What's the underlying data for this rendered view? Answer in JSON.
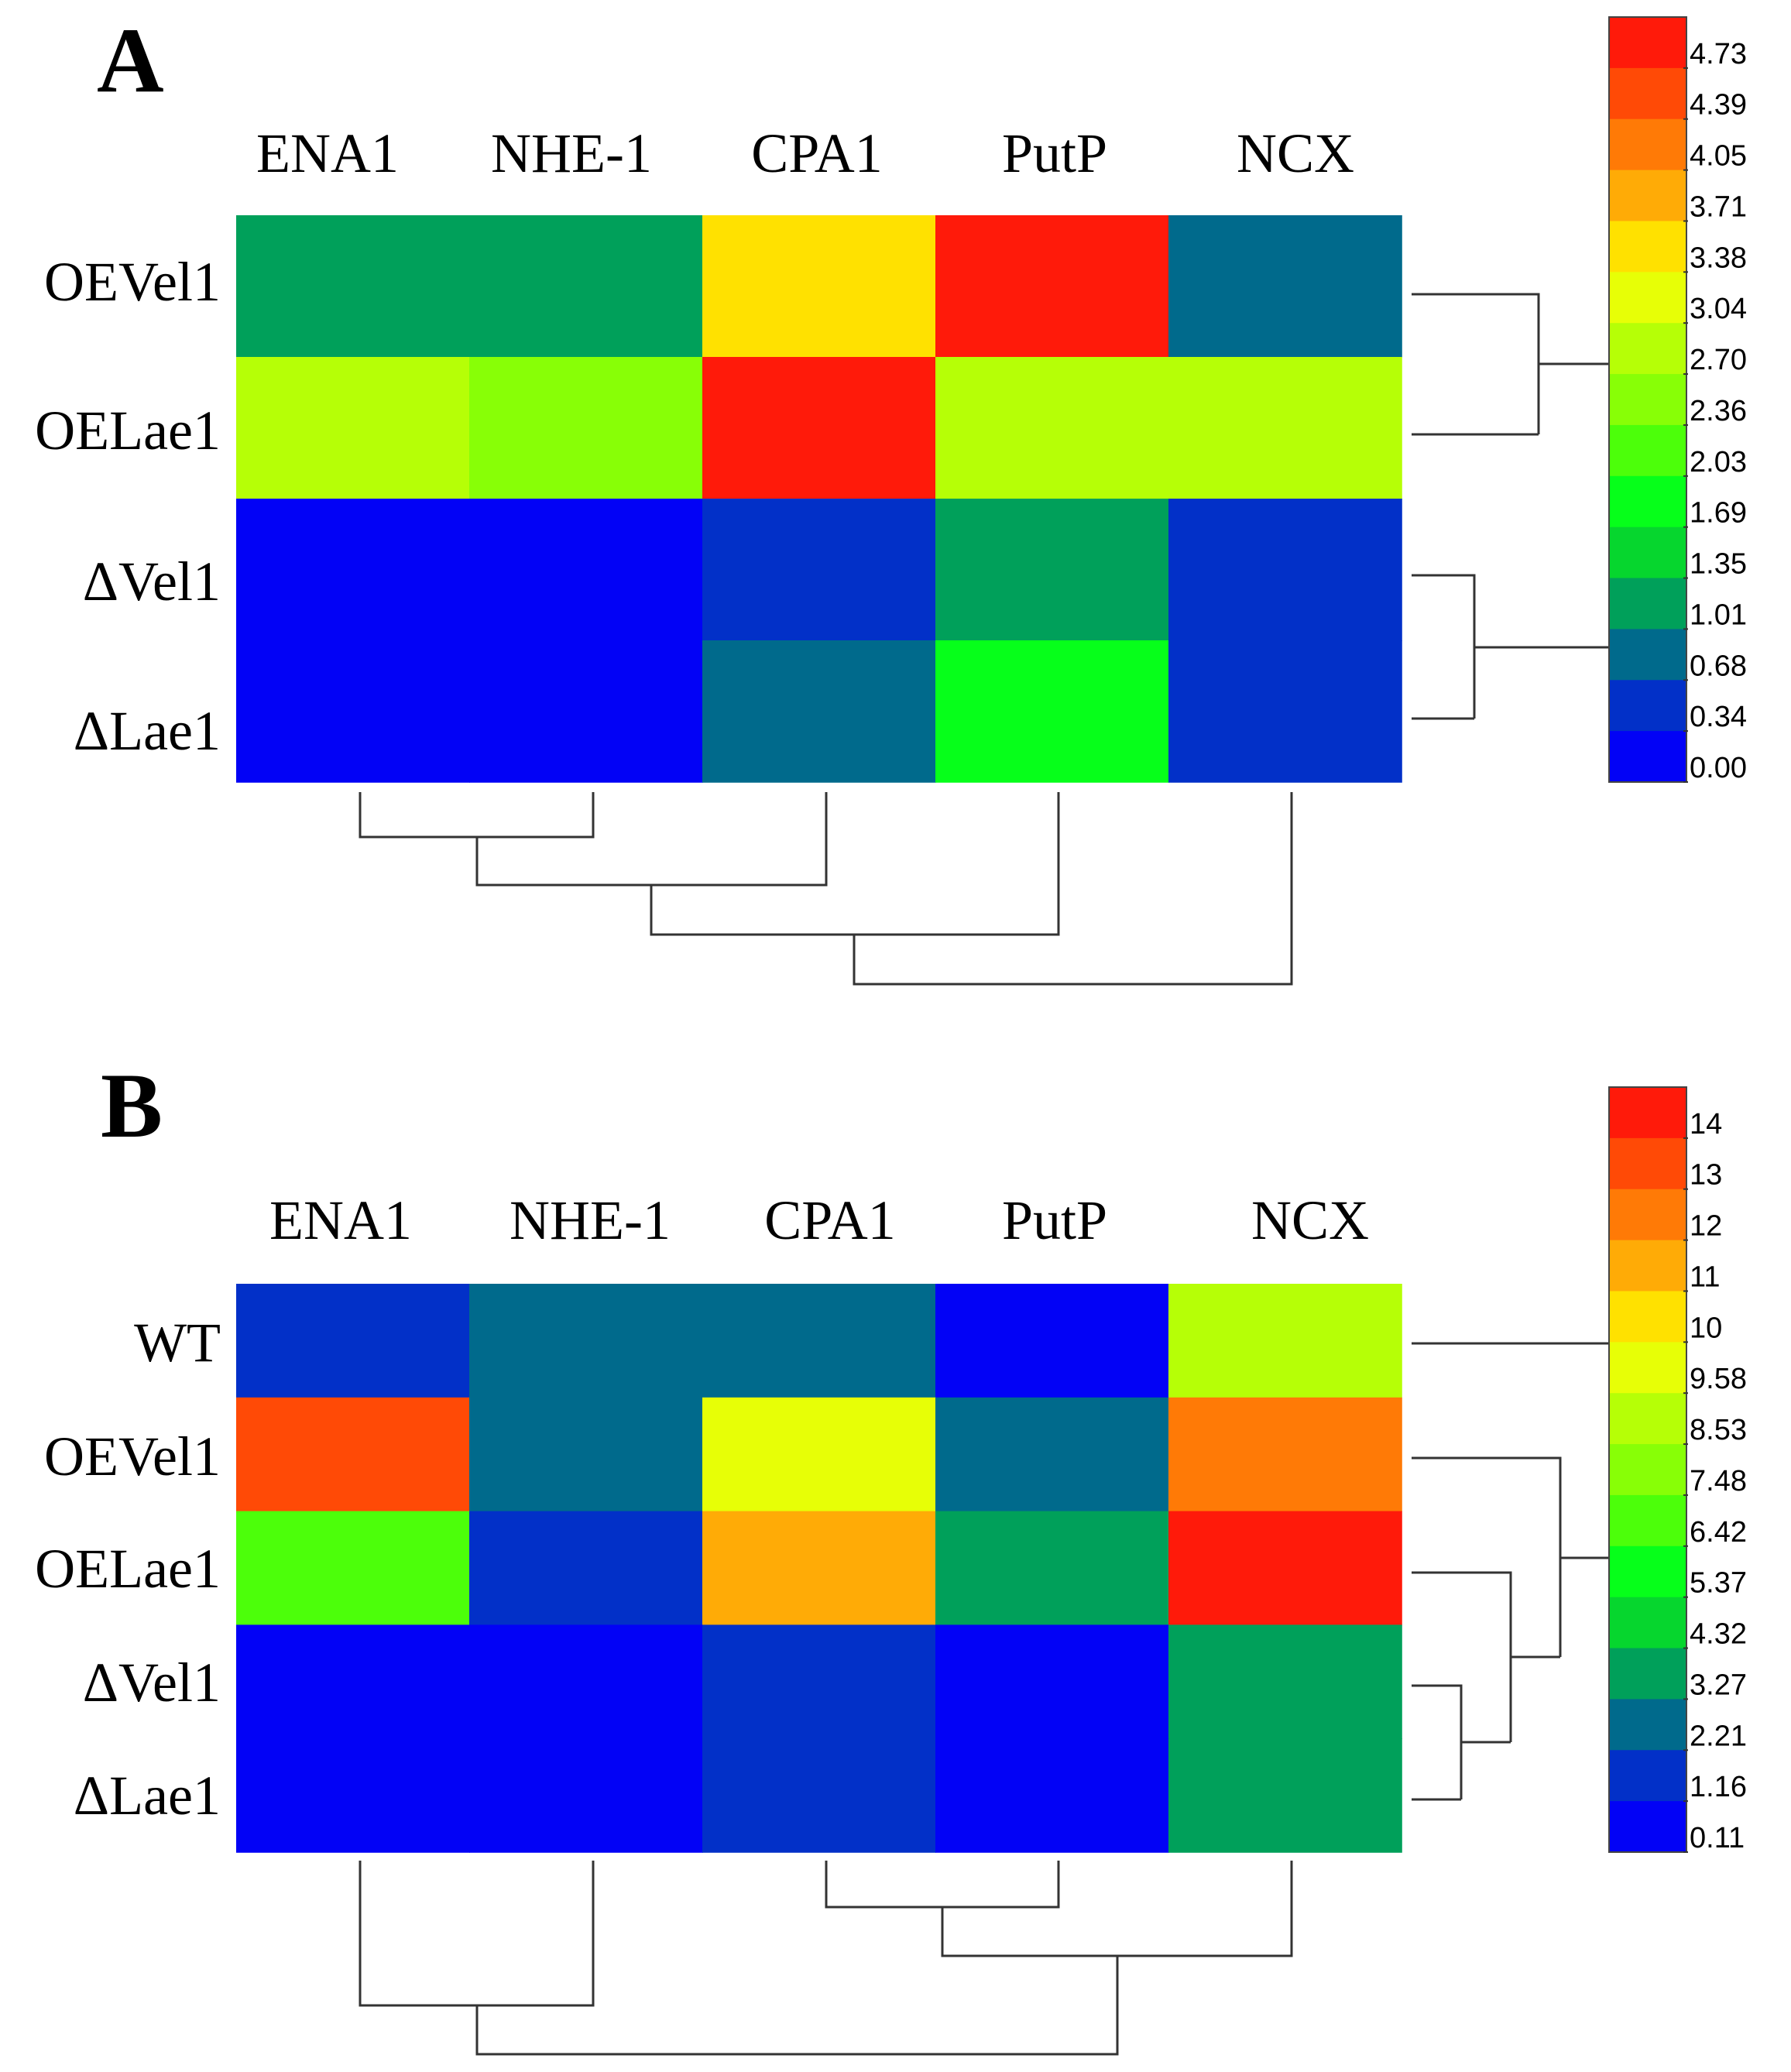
{
  "chart_data": [
    {
      "type": "heatmap",
      "panel": "A",
      "columns": [
        "ENA1",
        "NHE-1",
        "CPA1",
        "PutP",
        "NCX"
      ],
      "rows": [
        "OEVel1",
        "OELae1",
        "ΔVel1",
        "ΔLae1"
      ],
      "values": [
        [
          1.01,
          1.01,
          3.38,
          4.73,
          0.68
        ],
        [
          2.7,
          2.36,
          4.73,
          2.7,
          2.7
        ],
        [
          0.0,
          0.0,
          0.34,
          1.01,
          0.34
        ],
        [
          0.0,
          0.0,
          0.68,
          1.69,
          0.34
        ]
      ],
      "scale": {
        "ticks": [
          "4.73",
          "4.39",
          "4.05",
          "3.71",
          "3.38",
          "3.04",
          "2.70",
          "2.36",
          "2.03",
          "1.69",
          "1.35",
          "1.01",
          "0.68",
          "0.34",
          "0.00"
        ],
        "colors": [
          "#ff1a0a",
          "#ff4a06",
          "#ff7a06",
          "#ffab06",
          "#ffe100",
          "#e7ff06",
          "#b6ff06",
          "#88ff06",
          "#4cff0a",
          "#06ff1a",
          "#06d62e",
          "#00a05a",
          "#006a8c",
          "#0230c8",
          "#0202f6"
        ]
      },
      "row_dendrogram": "((OEVel1,OELae1),(ΔVel1,ΔLae1))",
      "col_dendrogram": "((((ENA1,NHE-1),CPA1),PutP),NCX)"
    },
    {
      "type": "heatmap",
      "panel": "B",
      "columns": [
        "ENA1",
        "NHE-1",
        "CPA1",
        "PutP",
        "NCX"
      ],
      "rows": [
        "WT",
        "OEVel1",
        "OELae1",
        "ΔVel1",
        "ΔLae1"
      ],
      "values": [
        [
          1.16,
          2.21,
          2.21,
          0.11,
          8.53
        ],
        [
          13,
          2.21,
          9.58,
          2.21,
          12
        ],
        [
          6.42,
          1.16,
          11,
          3.27,
          14
        ],
        [
          0.11,
          0.11,
          1.16,
          0.11,
          3.27
        ],
        [
          0.11,
          0.11,
          1.16,
          0.11,
          3.27
        ]
      ],
      "scale": {
        "ticks": [
          "14",
          "13",
          "12",
          "11",
          "10",
          "9.58",
          "8.53",
          "7.48",
          "6.42",
          "5.37",
          "4.32",
          "3.27",
          "2.21",
          "1.16",
          "0.11"
        ],
        "colors": [
          "#ff1a0a",
          "#ff4a06",
          "#ff7a06",
          "#ffab06",
          "#ffe100",
          "#e7ff06",
          "#b6ff06",
          "#88ff06",
          "#4cff0a",
          "#06ff1a",
          "#06d62e",
          "#00a05a",
          "#006a8c",
          "#0230c8",
          "#0202f6"
        ]
      },
      "row_dendrogram": "(WT,(OEVel1,(OELae1,(ΔVel1,ΔLae1))))",
      "col_dendrogram": "((ENA1,NHE-1),((CPA1,PutP),NCX))"
    }
  ]
}
